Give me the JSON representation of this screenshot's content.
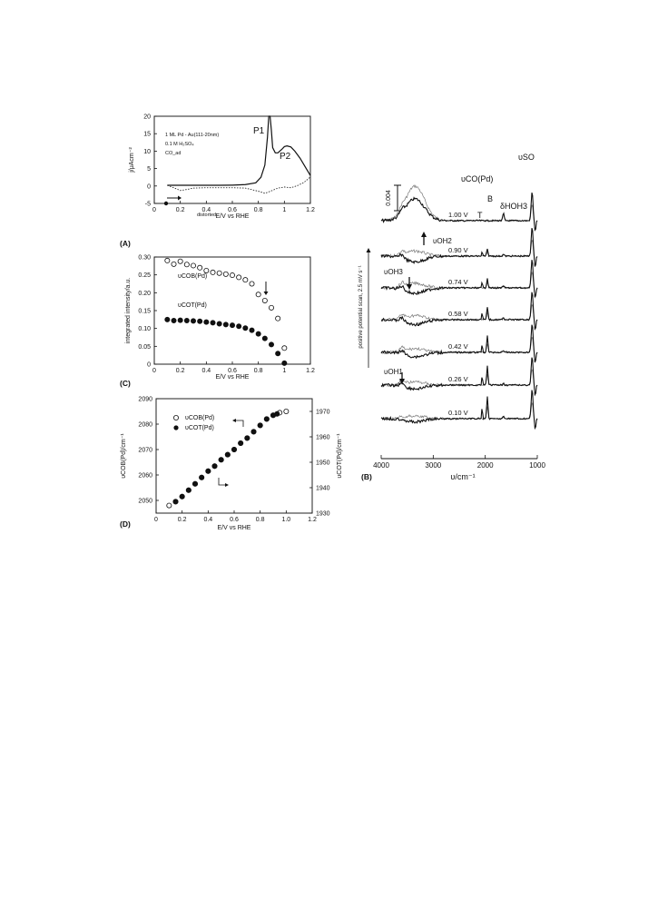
{
  "panel_labels": {
    "A": "(A)",
    "B": "(B)",
    "C": "(C)",
    "D": "(D)"
  },
  "chart_data": [
    {
      "id": "A",
      "type": "line",
      "xlabel": "E/V vs RHE",
      "ylabel": "j/μAcm⁻²",
      "xlim": [
        0,
        1.2
      ],
      "ylim": [
        -5,
        20
      ],
      "xticks": [
        "0",
        "0.2",
        "0.4",
        "0.6",
        "0.8",
        "1",
        "1.2"
      ],
      "yticks": [
        "-5",
        "0",
        "5",
        "10",
        "15",
        "20"
      ],
      "annotations": {
        "conditions": [
          "1 ML Pd - Au(111-20nm)",
          "0.1 M H₂SO₄",
          "CO_ad"
        ],
        "peak1": "P1",
        "peak2": "P2",
        "dotted_label": "distorted"
      },
      "series": [
        {
          "style": "solid",
          "x": [
            0.1,
            0.2,
            0.3,
            0.4,
            0.5,
            0.6,
            0.7,
            0.78,
            0.82,
            0.85,
            0.87,
            0.88,
            0.89,
            0.9,
            0.91,
            0.93,
            0.95,
            0.98,
            1.0,
            1.02,
            1.05,
            1.08,
            1.12,
            1.16,
            1.2
          ],
          "y": [
            0.2,
            0.2,
            0.2,
            0.2,
            0.2,
            0.25,
            0.4,
            0.9,
            2.5,
            6,
            14,
            20,
            20,
            16,
            11,
            9.5,
            9.5,
            10.5,
            11.3,
            11.5,
            11.2,
            10,
            8,
            5.5,
            3
          ]
        },
        {
          "style": "dotted",
          "x": [
            0.1,
            0.15,
            0.2,
            0.25,
            0.3,
            0.4,
            0.5,
            0.6,
            0.7,
            0.8,
            0.85,
            0.9,
            0.95,
            1.0,
            1.05,
            1.1,
            1.15,
            1.2
          ],
          "y": [
            0.2,
            -0.5,
            -1.3,
            -1.0,
            -0.6,
            -0.5,
            -0.5,
            -0.5,
            -0.6,
            -1.5,
            -2.1,
            -1.4,
            -0.6,
            -0.3,
            -0.5,
            0.1,
            1.0,
            2.6
          ]
        }
      ]
    },
    {
      "id": "C",
      "type": "scatter",
      "xlabel": "E/V vs RHE",
      "ylabel": "integrated intensity/a.u.",
      "xlim": [
        0,
        1.2
      ],
      "ylim": [
        0,
        0.3
      ],
      "xticks": [
        "0",
        "0.2",
        "0.4",
        "0.6",
        "0.8",
        "1",
        "1.2"
      ],
      "yticks": [
        "0",
        "0.05",
        "0.10",
        "0.15",
        "0.20",
        "0.25",
        "0.30"
      ],
      "series": [
        {
          "name": "υCOB(Pd)",
          "marker": "open",
          "x": [
            0.1,
            0.15,
            0.2,
            0.25,
            0.3,
            0.35,
            0.4,
            0.45,
            0.5,
            0.55,
            0.6,
            0.65,
            0.7,
            0.75,
            0.8,
            0.85,
            0.9,
            0.95,
            1.0
          ],
          "y": [
            0.29,
            0.28,
            0.288,
            0.279,
            0.276,
            0.27,
            0.262,
            0.257,
            0.255,
            0.252,
            0.249,
            0.243,
            0.236,
            0.225,
            0.195,
            0.178,
            0.158,
            0.128,
            0.045
          ]
        },
        {
          "name": "υCOT(Pd)",
          "marker": "filled",
          "x": [
            0.1,
            0.15,
            0.2,
            0.25,
            0.3,
            0.35,
            0.4,
            0.45,
            0.5,
            0.55,
            0.6,
            0.65,
            0.7,
            0.75,
            0.8,
            0.85,
            0.9,
            0.95,
            1.0
          ],
          "y": [
            0.125,
            0.122,
            0.123,
            0.122,
            0.121,
            0.12,
            0.118,
            0.116,
            0.113,
            0.111,
            0.109,
            0.106,
            0.101,
            0.095,
            0.085,
            0.072,
            0.055,
            0.03,
            0.003
          ]
        }
      ]
    },
    {
      "id": "D",
      "type": "scatter",
      "xlabel": "E/V vs RHE",
      "ylabel": "υCOB(Pd)/cm⁻¹",
      "y2label": "υCOT(Pd)/cm⁻¹",
      "xlim": [
        0,
        1.2
      ],
      "ylim": [
        2045,
        2090
      ],
      "y2lim": [
        1930,
        1975
      ],
      "xticks": [
        "0",
        "0.2",
        "0.4",
        "0.6",
        "0.8",
        "1.0",
        "1.2"
      ],
      "yticks": [
        "2050",
        "2060",
        "2070",
        "2080",
        "2090"
      ],
      "y2ticks": [
        "1930",
        "1940",
        "1950",
        "1960",
        "1970"
      ],
      "series": [
        {
          "name": "υCOB(Pd)",
          "marker": "open",
          "axis": "left",
          "x": [
            0.1,
            0.15,
            0.2,
            0.25,
            0.3,
            0.35,
            0.4,
            0.45,
            0.5,
            0.55,
            0.6,
            0.65,
            0.7,
            0.75,
            0.8,
            0.85,
            0.9,
            0.95,
            1.0
          ],
          "y": [
            2048,
            2049.5,
            2051.5,
            2054,
            2056.5,
            2059,
            2061.5,
            2063.5,
            2066,
            2068,
            2070,
            2072.5,
            2074.5,
            2077,
            2079.5,
            2082,
            2083.5,
            2084.5,
            2085
          ]
        },
        {
          "name": "υCOT(Pd)",
          "marker": "filled",
          "axis": "right",
          "x": [
            0.15,
            0.2,
            0.25,
            0.3,
            0.35,
            0.4,
            0.45,
            0.5,
            0.55,
            0.6,
            0.65,
            0.7,
            0.75,
            0.8,
            0.85,
            0.9,
            0.93
          ],
          "y": [
            1934.5,
            1936.5,
            1939,
            1941.5,
            1944,
            1946.5,
            1948.5,
            1951,
            1953,
            1955,
            1957.5,
            1959.5,
            1962,
            1964.5,
            1967,
            1968.5,
            1969
          ]
        }
      ]
    },
    {
      "id": "B",
      "type": "line",
      "xlabel": "υ/cm⁻¹",
      "side_label": "positive potential scan, 2.5 mV s⁻¹",
      "xlim": [
        4000,
        1000
      ],
      "xticks": [
        "4000",
        "3000",
        "2000",
        "1000"
      ],
      "scale_bar": "0.004",
      "potentials": [
        "1.00 V",
        "0.90 V",
        "0.74 V",
        "0.58 V",
        "0.42 V",
        "0.26 V",
        "0.10 V"
      ],
      "band_labels": {
        "vco": "υCO(Pd)",
        "vso": "υSO",
        "bridge": "B",
        "top": "T",
        "dh": "δHOH3",
        "oh2": "υOH2",
        "oh3": "υOH3",
        "oh1": "υOH1"
      }
    }
  ]
}
